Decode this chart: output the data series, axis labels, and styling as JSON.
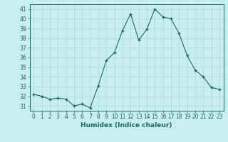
{
  "x": [
    0,
    1,
    2,
    3,
    4,
    5,
    6,
    7,
    8,
    9,
    10,
    11,
    12,
    13,
    14,
    15,
    16,
    17,
    18,
    19,
    20,
    21,
    22,
    23
  ],
  "y": [
    32.2,
    32.0,
    31.7,
    31.8,
    31.7,
    31.0,
    31.2,
    30.8,
    33.1,
    35.7,
    36.5,
    38.8,
    40.5,
    37.8,
    38.9,
    41.0,
    40.2,
    40.0,
    38.5,
    36.2,
    34.7,
    34.0,
    32.9,
    32.7
  ],
  "line_color": "#1a6b5a",
  "marker": "+",
  "markersize": 3.0,
  "linewidth": 0.8,
  "bg_color": "#c8eeee",
  "grid_color": "#b0d8d8",
  "xlabel": "Humidex (Indice chaleur)",
  "xlabel_fontsize": 6.5,
  "xlabel_color": "#1a6b5a",
  "tick_color": "#1a6b5a",
  "tick_fontsize": 5.5,
  "xlim": [
    -0.5,
    23.5
  ],
  "ylim": [
    30.5,
    41.5
  ],
  "yticks": [
    31,
    32,
    33,
    34,
    35,
    36,
    37,
    38,
    39,
    40,
    41
  ],
  "xticks": [
    0,
    1,
    2,
    3,
    4,
    5,
    6,
    7,
    8,
    9,
    10,
    11,
    12,
    13,
    14,
    15,
    16,
    17,
    18,
    19,
    20,
    21,
    22,
    23
  ]
}
